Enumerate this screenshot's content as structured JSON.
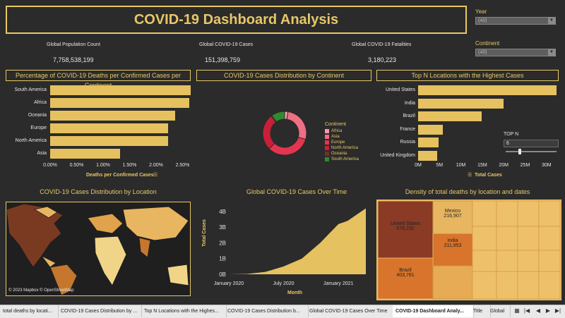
{
  "title": "COVID-19 Dashboard Analysis",
  "filters": {
    "year": {
      "label": "Year",
      "value": "(All)"
    },
    "continent": {
      "label": "Continent",
      "value": "(All)"
    }
  },
  "kpis": [
    {
      "label": "Global Population Count",
      "value": "7,758,538,199"
    },
    {
      "label": "Global COVID-19 Cases",
      "value": "151,398,759"
    },
    {
      "label": "Global COVID-19 Fatalities",
      "value": "3,180,223"
    }
  ],
  "colors": {
    "accent": "#e8c766",
    "bar": "#e6c15f",
    "background": "#2b2b2b"
  },
  "panels": {
    "deaths_title": "Percentage of COVID-19 Deaths per Confirmed Cases per Continent",
    "donut_title": "COVID-19 Cases Distribution by Continent",
    "topn_title": "Top N Locations with the Highest Cases",
    "map_title": "COVID-19 Cases Distribution by Location",
    "map_credit": "© 2023 Mapbox © OpenStreetMap",
    "area_title": "Global COVID-19 Cases Over Time",
    "treemap_title": "Density of total deaths by location and dates",
    "topn_label": "TOP N",
    "topn_value": "6"
  },
  "chart_data": [
    {
      "type": "bar",
      "orientation": "horizontal",
      "categories": [
        "South America",
        "Africa",
        "Oceania",
        "Europe",
        "North America",
        "Asia"
      ],
      "values": [
        2.65,
        2.62,
        2.36,
        2.23,
        2.23,
        1.32
      ],
      "xlabel": "Deaths per Confirmed Cases",
      "xticks": [
        "0.00%",
        "0.50%",
        "1.00%",
        "1.50%",
        "2.00%",
        "2.50%"
      ],
      "xlim": [
        0,
        2.8
      ]
    },
    {
      "type": "pie",
      "donut": true,
      "legend_title": "Continent",
      "labels": [
        "Africa",
        "Asia",
        "Europe",
        "North America",
        "Oceania",
        "South America"
      ],
      "values": [
        2.5,
        27,
        33,
        27,
        0.5,
        10
      ],
      "colors": [
        "#f59aa8",
        "#ef6f83",
        "#e33550",
        "#c62038",
        "#7a2d22",
        "#2e8b2e"
      ]
    },
    {
      "type": "bar",
      "orientation": "horizontal",
      "categories": [
        "United States",
        "India",
        "Brazil",
        "France",
        "Russia",
        "United Kingdom"
      ],
      "values": [
        32.4,
        19.9,
        14.8,
        5.7,
        4.8,
        4.4
      ],
      "xlabel": "Total Cases",
      "xticks": [
        "0M",
        "5M",
        "10M",
        "15M",
        "20M",
        "25M",
        "30M"
      ],
      "xlim": [
        0,
        34
      ]
    },
    {
      "type": "area",
      "x": [
        "2020-01",
        "2020-03",
        "2020-05",
        "2020-07",
        "2020-09",
        "2020-11",
        "2021-01",
        "2021-02",
        "2021-03",
        "2021-04"
      ],
      "values": [
        0,
        0.02,
        0.15,
        0.5,
        1.0,
        2.0,
        3.2,
        3.4,
        3.8,
        4.2
      ],
      "xlabel": "Month",
      "ylabel": "Total Cases",
      "yticks": [
        "0B",
        "1B",
        "2B",
        "3B",
        "4B"
      ],
      "xticks": [
        "January 2020",
        "July 2020",
        "January 2021"
      ],
      "ylim": [
        0,
        4.4
      ]
    },
    {
      "type": "treemap",
      "items": [
        {
          "name": "United States",
          "value": "576,232"
        },
        {
          "name": "Brazil",
          "value": "403,781"
        },
        {
          "name": "Mexico",
          "value": "216,907"
        },
        {
          "name": "India",
          "value": "211,853"
        }
      ]
    }
  ],
  "tabs": [
    "total deaths by locati...",
    "COVID-19 Cases Distribution by ...",
    "Top N Locations with the Highes...",
    "COVID-19 Cases Distribution b...",
    "Global COVID-19 Cases Over Time",
    "COVID-19 Dashboard Analy...",
    "Title",
    "Global"
  ]
}
